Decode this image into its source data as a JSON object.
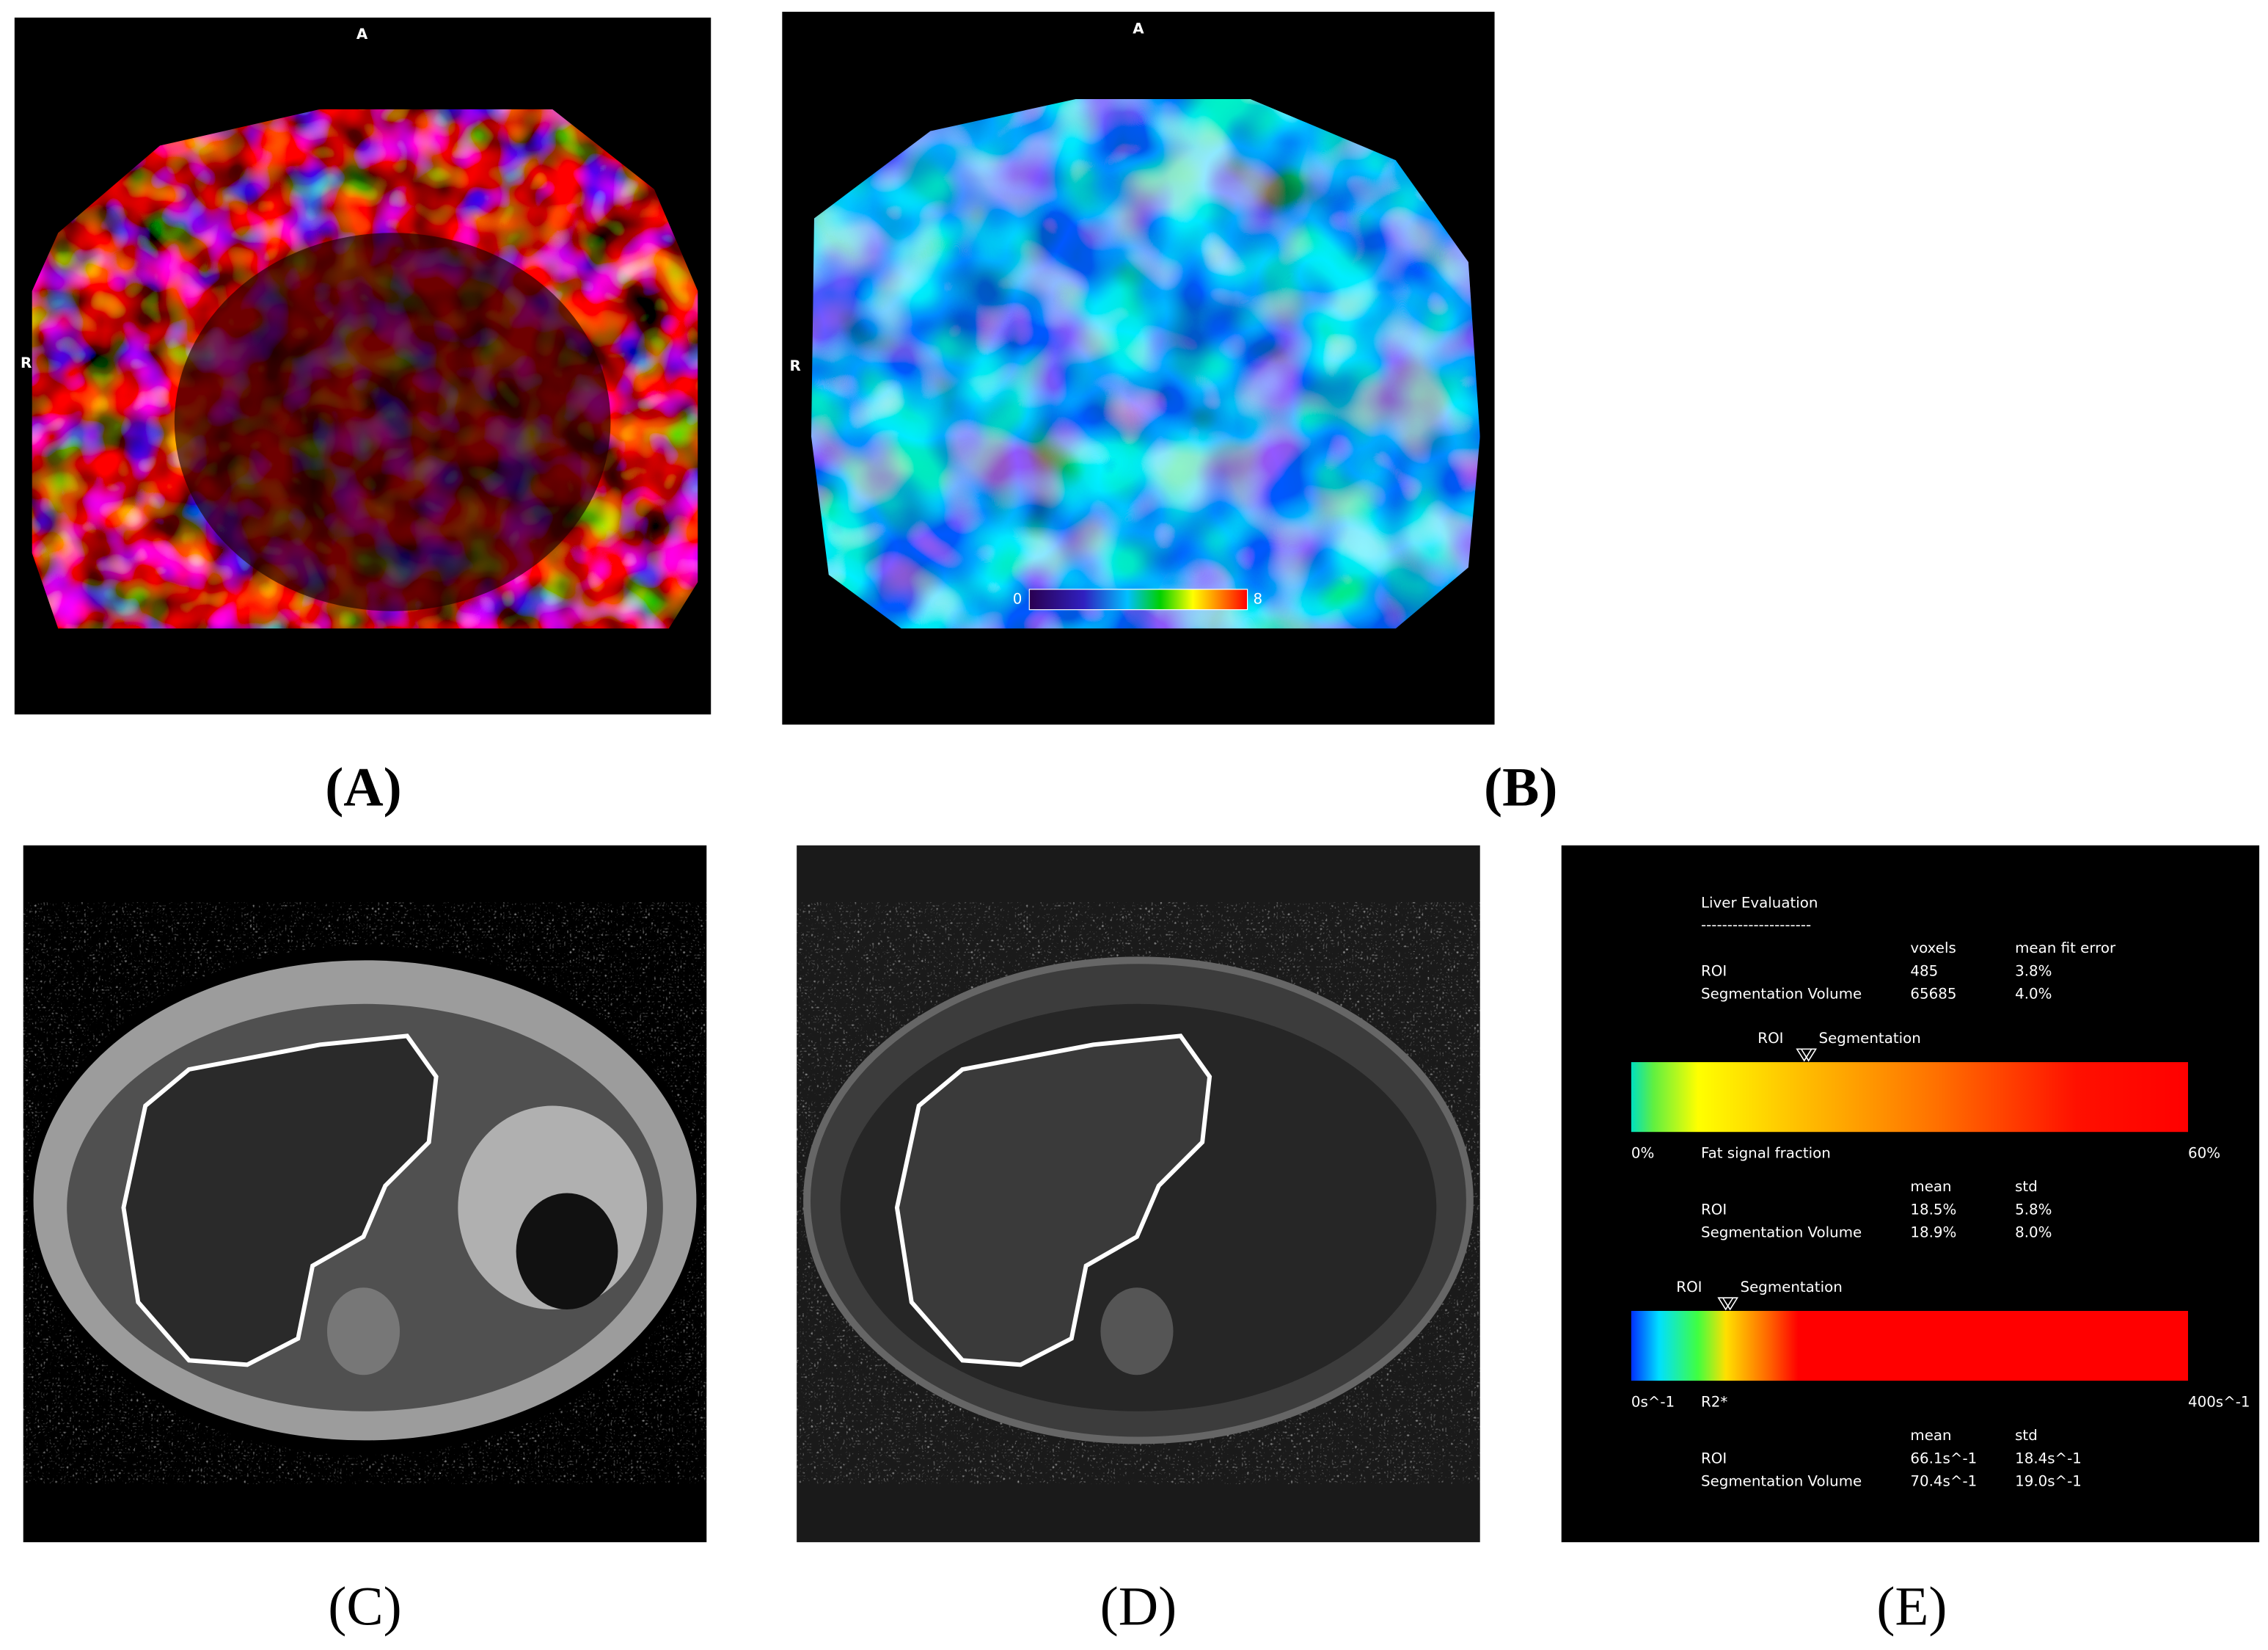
{
  "panels": [
    {
      "label": "(A)",
      "orientation": {
        "top": "A",
        "side": "R"
      }
    },
    {
      "label": "(B)",
      "orientation": {
        "top": "A",
        "side": "R"
      },
      "colorbar": {
        "min": "0",
        "max": "8"
      }
    },
    {
      "label": "(C)"
    },
    {
      "label": "(D)"
    },
    {
      "label": "(E)"
    }
  ],
  "liver_evaluation": {
    "title": "Liver Evaluation",
    "divider": "---------------------",
    "fit_table": {
      "headers": [
        "voxels",
        "mean fit error"
      ],
      "rows": [
        [
          "ROI",
          "485",
          "3.8%"
        ],
        [
          "Segmentation Volume",
          "65685",
          "4.0%"
        ]
      ]
    },
    "fat_bar": {
      "markers": [
        "ROI",
        "Segmentation"
      ],
      "min": "0%",
      "label": "Fat signal fraction",
      "max": "60%"
    },
    "fat_table": {
      "headers": [
        "mean",
        "std"
      ],
      "rows": [
        [
          "ROI",
          "18.5%",
          "5.8%"
        ],
        [
          "Segmentation Volume",
          "18.9%",
          "8.0%"
        ]
      ]
    },
    "r2_bar": {
      "markers": [
        "ROI",
        "Segmentation"
      ],
      "min": "0s^-1",
      "label": "R2*",
      "max": "400s^-1"
    },
    "r2_table": {
      "headers": [
        "mean",
        "std"
      ],
      "rows": [
        [
          "ROI",
          "66.1s^-1",
          "18.4s^-1"
        ],
        [
          "Segmentation Volume",
          "70.4s^-1",
          "19.0s^-1"
        ]
      ]
    }
  }
}
